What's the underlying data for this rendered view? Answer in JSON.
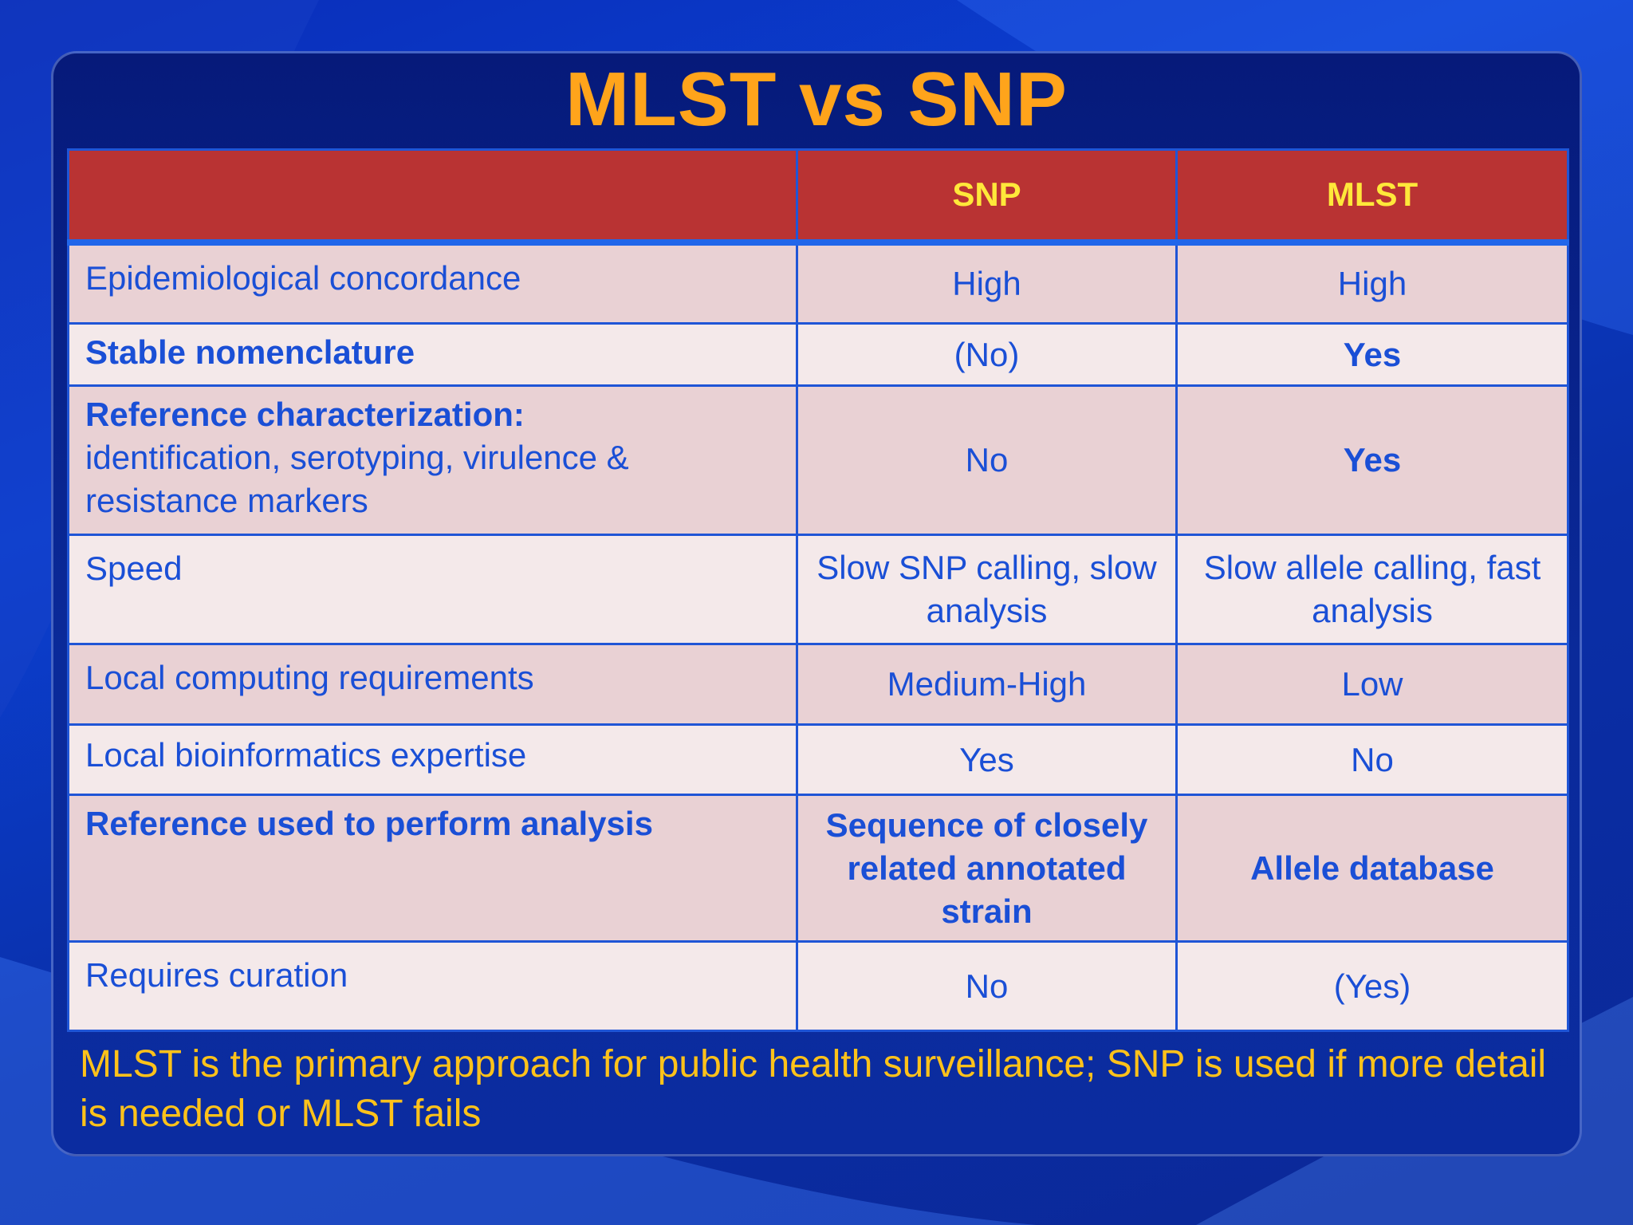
{
  "slide": {
    "title": "MLST vs SNP",
    "footnote": "MLST is the primary approach for public health surveillance; SNP is used if more detail is needed or MLST fails"
  },
  "table": {
    "headers": [
      "",
      "SNP",
      "MLST"
    ],
    "rows": [
      {
        "label_bold": "",
        "label": "Epidemiological concordance",
        "snp": "High",
        "mlst": "High"
      },
      {
        "label_bold": "Stable nomenclature",
        "label": "",
        "snp": "(No)",
        "mlst": "Yes"
      },
      {
        "label_bold": "Reference characterization:",
        "label": "identification, serotyping, virulence & resistance markers",
        "snp": "No",
        "mlst": "Yes"
      },
      {
        "label_bold": "",
        "label": "Speed",
        "snp": "Slow SNP calling, slow analysis",
        "mlst": "Slow allele calling, fast analysis"
      },
      {
        "label_bold": "",
        "label": "Local computing requirements",
        "snp": "Medium-High",
        "mlst": "Low"
      },
      {
        "label_bold": "",
        "label": "Local bioinformatics expertise",
        "snp": "Yes",
        "mlst": "No"
      },
      {
        "label_bold": "Reference used to perform analysis",
        "label": "",
        "snp": "Sequence of closely related annotated strain",
        "mlst": "Allele database"
      },
      {
        "label_bold": "",
        "label": "Requires curation",
        "snp": "No",
        "mlst": "(Yes)"
      }
    ]
  },
  "colors": {
    "title": "#ffa41b",
    "header_bg": "#b93333",
    "header_text": "#ffe83a",
    "cell_text": "#1a4fd6",
    "footnote": "#ffc21a"
  }
}
